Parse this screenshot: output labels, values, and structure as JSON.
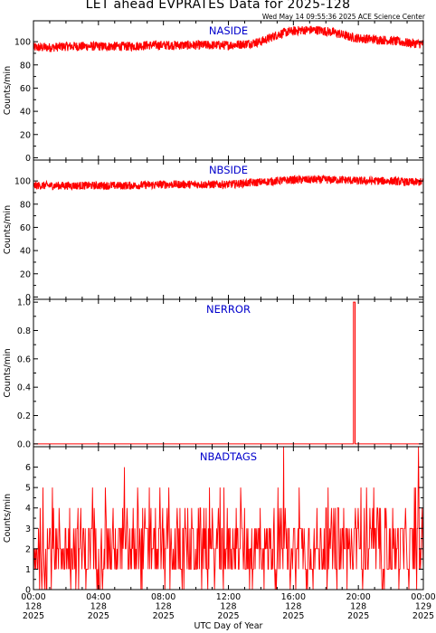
{
  "header": {
    "title": "LET ahead EVPRATES Data for 2025-128",
    "timestamp": "Wed May 14 09:55:36 2025 ACE Science Center"
  },
  "colors": {
    "series": "#ff0000",
    "panel_label": "#0000cc",
    "axes": "#000000"
  },
  "chart_data": [
    {
      "type": "line",
      "title": "NASIDE",
      "ylabel": "Counts/min",
      "xlabel": "",
      "xlim": [
        0,
        24
      ],
      "ylim": [
        -2,
        118
      ],
      "yticks": [
        0,
        20,
        40,
        60,
        80,
        100
      ],
      "grid": false,
      "series": [
        {
          "x": [
            0,
            1,
            2,
            3,
            4,
            5,
            6,
            7,
            8,
            9,
            10,
            11,
            12,
            13,
            14,
            14.5,
            15,
            15.5,
            16,
            16.5,
            17,
            17.5,
            18,
            18.5,
            19,
            19.5,
            20,
            21,
            22,
            23,
            24
          ],
          "y": [
            95,
            95,
            96,
            96,
            96,
            96,
            96,
            97,
            97,
            97,
            97,
            97,
            97,
            98,
            100,
            103,
            106,
            108,
            109,
            110,
            110,
            110,
            109,
            108,
            106,
            104,
            103,
            102,
            101,
            99,
            98
          ],
          "noise": 4
        }
      ]
    },
    {
      "type": "line",
      "title": "NBSIDE",
      "ylabel": "Counts/min",
      "xlabel": "",
      "xlim": [
        0,
        24
      ],
      "ylim": [
        -2,
        118
      ],
      "yticks": [
        0,
        20,
        40,
        60,
        80,
        100
      ],
      "grid": false,
      "series": [
        {
          "x": [
            0,
            2,
            4,
            6,
            8,
            10,
            12,
            13,
            14,
            15,
            16,
            17,
            18,
            19,
            20,
            21,
            22,
            23,
            24
          ],
          "y": [
            96,
            96,
            96,
            96,
            97,
            97,
            97,
            98,
            99,
            100,
            101,
            101,
            101,
            101,
            100,
            100,
            100,
            99,
            99
          ],
          "noise": 3.5
        }
      ]
    },
    {
      "type": "line",
      "title": "NERROR",
      "ylabel": "Counts/min",
      "xlabel": "",
      "xlim": [
        0,
        24
      ],
      "ylim": [
        -0.02,
        1.02
      ],
      "yticks": [
        0.0,
        0.2,
        0.4,
        0.6,
        0.8,
        1.0
      ],
      "ytick_labels": [
        "0.0",
        "0.2",
        "0.4",
        "0.6",
        "0.8",
        "1.0"
      ],
      "grid": false,
      "series": [
        {
          "x": [
            0,
            19.7,
            19.7,
            19.8,
            19.8,
            24
          ],
          "y": [
            0,
            0,
            1,
            1,
            0,
            0
          ]
        }
      ]
    },
    {
      "type": "line",
      "title": "NBADTAGS",
      "ylabel": "Counts/min",
      "xlabel": "UTC Day of Year",
      "xlim": [
        0,
        24
      ],
      "ylim": [
        0,
        7
      ],
      "yticks": [
        0,
        1,
        2,
        3,
        4,
        5,
        6
      ],
      "grid": false,
      "series": [
        {
          "x": [
            0,
            24
          ],
          "y": [
            2,
            2
          ],
          "discrete_noise": [
            0,
            5
          ],
          "spikes": [
            {
              "x": 5.6,
              "y": 6
            },
            {
              "x": 15.4,
              "y": 7
            },
            {
              "x": 23.7,
              "y": 7
            }
          ]
        }
      ],
      "xticks": [
        0,
        4,
        8,
        12,
        16,
        20,
        24
      ],
      "xtick_labels": [
        [
          "00:00",
          "128",
          "2025"
        ],
        [
          "04:00",
          "128",
          "2025"
        ],
        [
          "08:00",
          "128",
          "2025"
        ],
        [
          "12:00",
          "128",
          "2025"
        ],
        [
          "16:00",
          "128",
          "2025"
        ],
        [
          "20:00",
          "128",
          "2025"
        ],
        [
          "00:00",
          "129",
          "2025"
        ]
      ]
    }
  ]
}
